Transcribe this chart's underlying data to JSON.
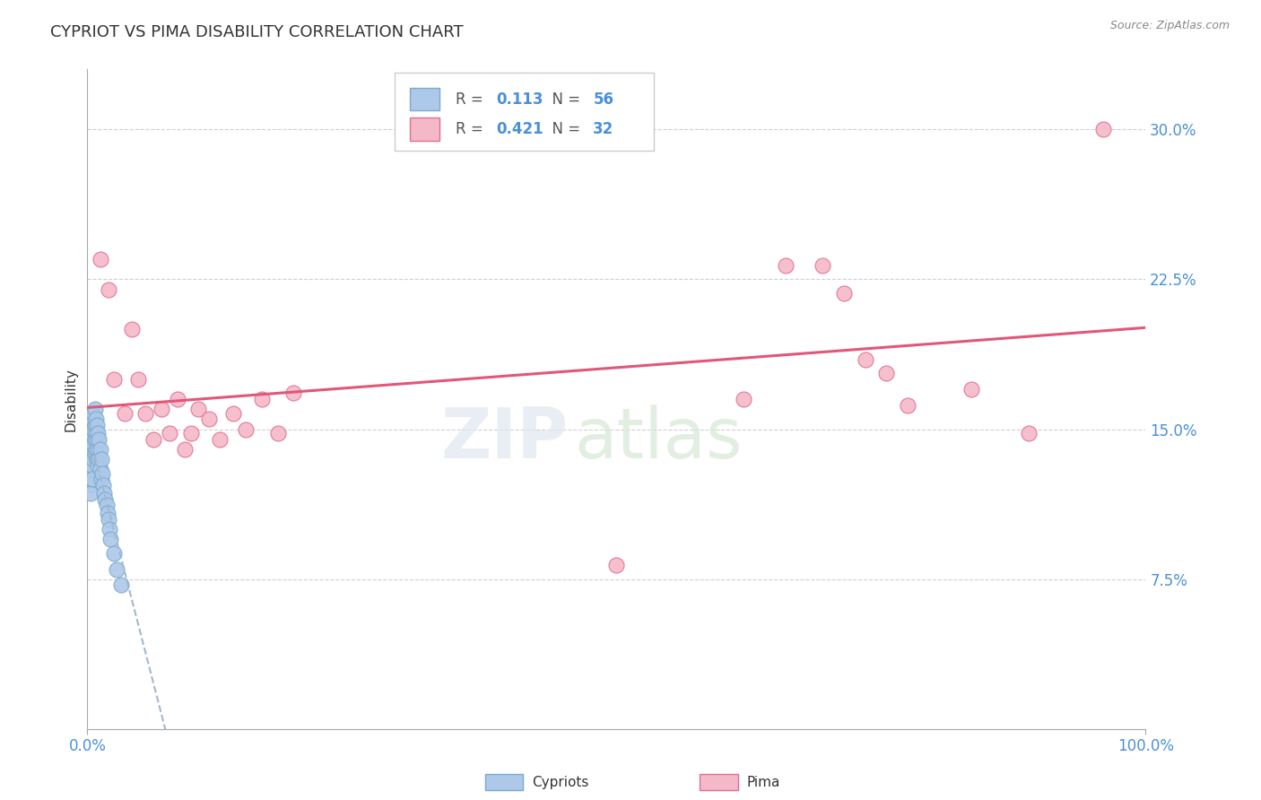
{
  "title": "CYPRIOT VS PIMA DISABILITY CORRELATION CHART",
  "source": "Source: ZipAtlas.com",
  "ylabel": "Disability",
  "watermark_top": "ZIP",
  "watermark_bot": "atlas",
  "cypriot_R": 0.113,
  "cypriot_N": 56,
  "pima_R": 0.421,
  "pima_N": 32,
  "cypriot_color": "#adc8e8",
  "cypriot_edge": "#7aaacf",
  "pima_color": "#f5b8c8",
  "pima_edge": "#e07090",
  "cypriot_line_color": "#a0b8d0",
  "pima_line_color": "#e05878",
  "xmin": 0.0,
  "xmax": 1.0,
  "ymin": 0.0,
  "ymax": 0.33,
  "yticks": [
    0.075,
    0.15,
    0.225,
    0.3
  ],
  "ytick_labels": [
    "7.5%",
    "15.0%",
    "22.5%",
    "30.0%"
  ],
  "grid_color": "#d0d0d0",
  "background_color": "#ffffff",
  "cypriot_x": [
    0.001,
    0.001,
    0.001,
    0.002,
    0.002,
    0.002,
    0.002,
    0.003,
    0.003,
    0.003,
    0.003,
    0.003,
    0.004,
    0.004,
    0.004,
    0.004,
    0.005,
    0.005,
    0.005,
    0.005,
    0.005,
    0.006,
    0.006,
    0.006,
    0.006,
    0.007,
    0.007,
    0.007,
    0.007,
    0.008,
    0.008,
    0.008,
    0.009,
    0.009,
    0.009,
    0.01,
    0.01,
    0.01,
    0.011,
    0.011,
    0.012,
    0.012,
    0.013,
    0.013,
    0.014,
    0.015,
    0.016,
    0.017,
    0.018,
    0.019,
    0.02,
    0.021,
    0.022,
    0.025,
    0.028,
    0.032
  ],
  "cypriot_y": [
    0.14,
    0.135,
    0.128,
    0.145,
    0.138,
    0.13,
    0.122,
    0.148,
    0.14,
    0.132,
    0.125,
    0.118,
    0.152,
    0.145,
    0.138,
    0.13,
    0.155,
    0.148,
    0.14,
    0.132,
    0.125,
    0.158,
    0.15,
    0.142,
    0.135,
    0.16,
    0.152,
    0.145,
    0.138,
    0.155,
    0.148,
    0.14,
    0.152,
    0.145,
    0.135,
    0.148,
    0.14,
    0.132,
    0.145,
    0.135,
    0.14,
    0.13,
    0.135,
    0.125,
    0.128,
    0.122,
    0.118,
    0.115,
    0.112,
    0.108,
    0.105,
    0.1,
    0.095,
    0.088,
    0.08,
    0.072
  ],
  "pima_x": [
    0.012,
    0.02,
    0.025,
    0.035,
    0.042,
    0.048,
    0.055,
    0.062,
    0.07,
    0.078,
    0.085,
    0.092,
    0.098,
    0.105,
    0.115,
    0.125,
    0.138,
    0.15,
    0.165,
    0.18,
    0.195,
    0.5,
    0.62,
    0.66,
    0.695,
    0.715,
    0.735,
    0.755,
    0.775,
    0.835,
    0.89,
    0.96
  ],
  "pima_y": [
    0.235,
    0.22,
    0.175,
    0.158,
    0.2,
    0.175,
    0.158,
    0.145,
    0.16,
    0.148,
    0.165,
    0.14,
    0.148,
    0.16,
    0.155,
    0.145,
    0.158,
    0.15,
    0.165,
    0.148,
    0.168,
    0.082,
    0.165,
    0.232,
    0.232,
    0.218,
    0.185,
    0.178,
    0.162,
    0.17,
    0.148,
    0.3
  ]
}
